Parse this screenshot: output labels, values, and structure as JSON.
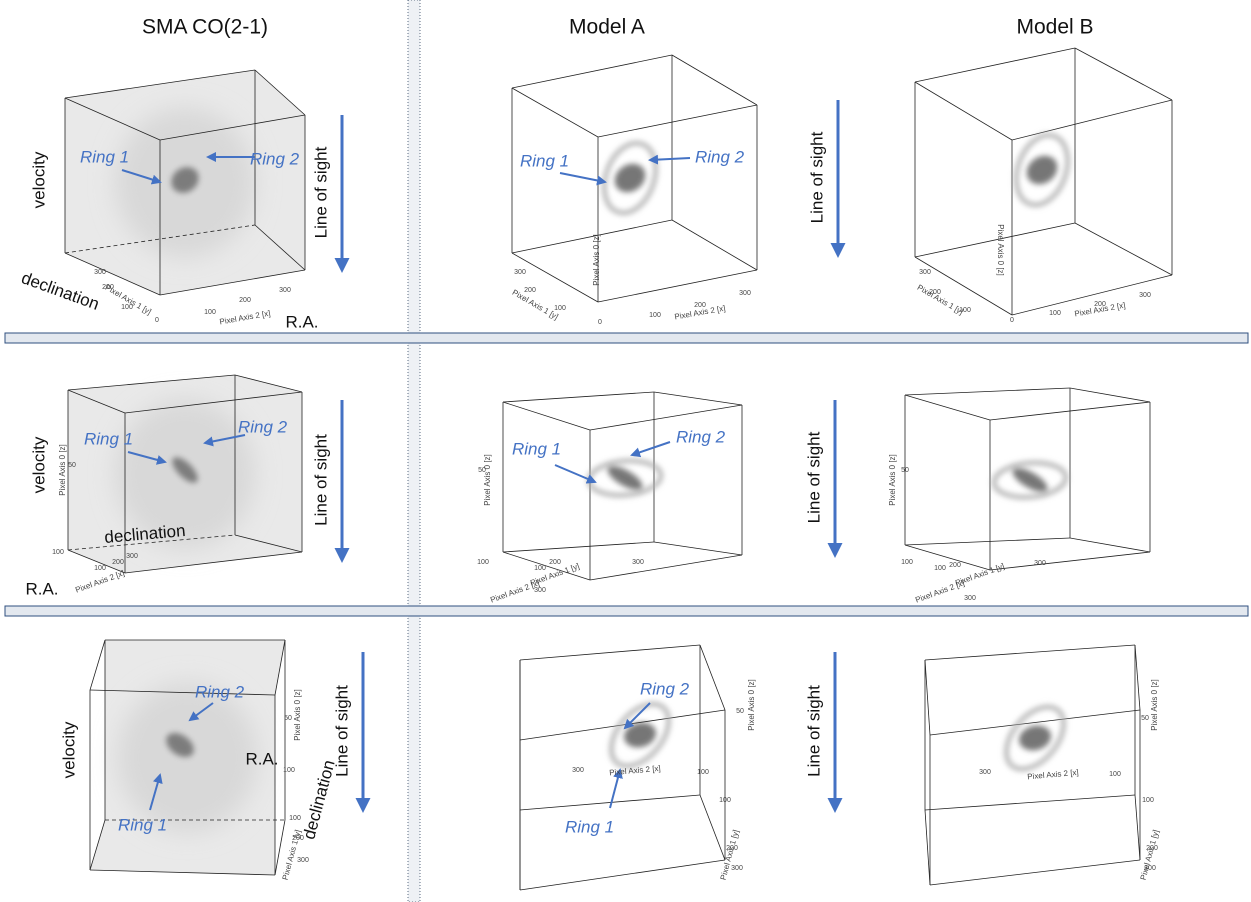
{
  "headers": [
    "SMA CO(2-1)",
    "Model A",
    "Model B"
  ],
  "rows": [
    {
      "line_of_sight": [
        "Line of sight",
        "Line of sight"
      ],
      "panels": [
        [
          "velocity",
          "Ring 1",
          "Ring 2",
          "declination",
          "R.A.",
          "Pixel Axis 1 [y]",
          "Pixel Axis 2 [x]",
          "300",
          "200",
          "100",
          "0",
          "100",
          "200",
          "300"
        ],
        [
          "Ring 1",
          "Ring 2",
          "Pixel Axis 0 [z]",
          "Pixel Axis 1 [y]",
          "Pixel Axis 2 [x]",
          "300",
          "200",
          "100",
          "0",
          "100",
          "200",
          "300"
        ],
        [
          "Pixel Axis 0 [z]",
          "Pixel Axis 1 [y]",
          "Pixel Axis 2 [x]",
          "300",
          "200",
          "100",
          "0",
          "100",
          "200",
          "300"
        ]
      ]
    },
    {
      "line_of_sight": [
        "Line of sight",
        "Line of sight"
      ],
      "panels": [
        [
          "velocity",
          "Pixel Axis 0 [z]",
          "50",
          "Ring 1",
          "Ring 2",
          "declination",
          "100",
          "R.A.",
          "Pixel Axis 2 [x]",
          "100",
          "200",
          "300"
        ],
        [
          "Ring 1",
          "Ring 2",
          "Pixel Axis 0 [z]",
          "50",
          "100",
          "Pixel Axis 1 [y]",
          "Pixel Axis 2 [x]",
          "100",
          "200",
          "300",
          "300"
        ],
        [
          "Pixel Axis 0 [z]",
          "50",
          "100",
          "Pixel Axis 1 [y]",
          "Pixel Axis 2 [x]",
          "100",
          "200",
          "300",
          "300"
        ]
      ]
    },
    {
      "line_of_sight": [
        "Line of sight",
        "Line of sight"
      ],
      "panels": [
        [
          "velocity",
          "Ring 2",
          "Ring 1",
          "R.A.",
          "declination",
          "Pixel Axis 0 [z]",
          "50",
          "100",
          "Pixel Axis 1 [y]",
          "100",
          "200",
          "300"
        ],
        [
          "Ring 2",
          "Ring 1",
          "Pixel Axis 0 [z]",
          "50",
          "Pixel Axis 2 [x]",
          "300",
          "100",
          "100",
          "Pixel Axis 1 [y]",
          "200",
          "300"
        ],
        [
          "Pixel Axis 0 [z]",
          "50",
          "Pixel Axis 2 [x]",
          "300",
          "100",
          "100",
          "Pixel Axis 1 [y]",
          "200",
          "300"
        ]
      ]
    }
  ]
}
